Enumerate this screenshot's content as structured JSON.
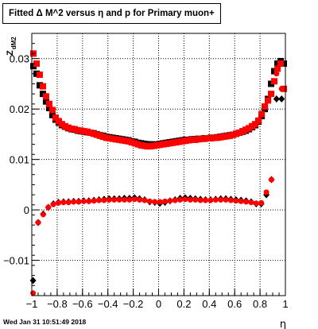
{
  "chart_data": {
    "type": "scatter",
    "title": "Fitted Δ M^2 versus η and p for Primary muon+",
    "xlabel": "η",
    "ylabel": "Z",
    "ylabel_sub": "dM2",
    "xlim": [
      -1,
      1
    ],
    "ylim": [
      -0.017,
      0.035
    ],
    "x_ticks": [
      "−1",
      "−0.8",
      "−0.6",
      "−0.4",
      "−0.2",
      "0",
      "0.2",
      "0.4",
      "0.6",
      "0.8",
      "1"
    ],
    "y_ticks": [
      "−0.01",
      "0",
      "0.01",
      "0.02",
      "0.03"
    ],
    "grid": true,
    "series": [
      {
        "marker": "square",
        "color": "#000000",
        "x": [
          -0.9875,
          -0.9625,
          -0.9375,
          -0.9125,
          -0.8875,
          -0.8625,
          -0.8375,
          -0.8125,
          -0.7875,
          -0.7625,
          -0.7375,
          -0.7125,
          -0.6875,
          -0.6625,
          -0.6375,
          -0.6125,
          -0.5875,
          -0.5625,
          -0.5375,
          -0.5125,
          -0.4875,
          -0.4625,
          -0.4375,
          -0.4125,
          -0.3875,
          -0.3625,
          -0.3375,
          -0.3125,
          -0.2875,
          -0.2625,
          -0.2375,
          -0.2125,
          -0.1875,
          -0.1625,
          -0.1375,
          -0.1125,
          -0.0875,
          -0.0625,
          -0.0375,
          -0.0125,
          0.0125,
          0.0375,
          0.0625,
          0.0875,
          0.1125,
          0.1375,
          0.1625,
          0.1875,
          0.2125,
          0.2375,
          0.2625,
          0.2875,
          0.3125,
          0.3375,
          0.3625,
          0.3875,
          0.4125,
          0.4375,
          0.4625,
          0.4875,
          0.5125,
          0.5375,
          0.5625,
          0.5875,
          0.6125,
          0.6375,
          0.6625,
          0.6875,
          0.7125,
          0.7375,
          0.7625,
          0.7875,
          0.8125,
          0.8375,
          0.8625,
          0.8875,
          0.9125,
          0.9375,
          0.9625,
          0.9875
        ],
        "y": [
          0.0285,
          0.027,
          0.0247,
          0.023,
          0.0215,
          0.0202,
          0.0188,
          0.0179,
          0.0173,
          0.0168,
          0.0165,
          0.0162,
          0.016,
          0.0159,
          0.0157,
          0.0156,
          0.0155,
          0.0154,
          0.0153,
          0.0152,
          0.015,
          0.0148,
          0.0147,
          0.0145,
          0.0144,
          0.0143,
          0.0142,
          0.0141,
          0.014,
          0.0139,
          0.0138,
          0.0136,
          0.0135,
          0.0133,
          0.0132,
          0.0131,
          0.013,
          0.013,
          0.0129,
          0.013,
          0.0131,
          0.0132,
          0.0133,
          0.0134,
          0.0135,
          0.0136,
          0.0137,
          0.0138,
          0.0139,
          0.0139,
          0.014,
          0.014,
          0.0141,
          0.0141,
          0.0142,
          0.0142,
          0.0143,
          0.0143,
          0.0144,
          0.0145,
          0.0146,
          0.0147,
          0.0148,
          0.0149,
          0.0151,
          0.0153,
          0.0155,
          0.0157,
          0.016,
          0.0164,
          0.0168,
          0.0175,
          0.0186,
          0.02,
          0.022,
          0.025,
          0.0275,
          0.029,
          0.0295,
          0.029
        ]
      },
      {
        "marker": "square",
        "color": "#ff0000",
        "x": [
          -0.9875,
          -0.9625,
          -0.9375,
          -0.9125,
          -0.8875,
          -0.8625,
          -0.8375,
          -0.8125,
          -0.7875,
          -0.7625,
          -0.7375,
          -0.7125,
          -0.6875,
          -0.6625,
          -0.6375,
          -0.6125,
          -0.5875,
          -0.5625,
          -0.5375,
          -0.5125,
          -0.4875,
          -0.4625,
          -0.4375,
          -0.4125,
          -0.3875,
          -0.3625,
          -0.3375,
          -0.3125,
          -0.2875,
          -0.2625,
          -0.2375,
          -0.2125,
          -0.1875,
          -0.1625,
          -0.1375,
          -0.1125,
          -0.0875,
          -0.0625,
          -0.0375,
          -0.0125,
          0.0125,
          0.0375,
          0.0625,
          0.0875,
          0.1125,
          0.1375,
          0.1625,
          0.1875,
          0.2125,
          0.2375,
          0.2625,
          0.2875,
          0.3125,
          0.3375,
          0.3625,
          0.3875,
          0.4125,
          0.4375,
          0.4625,
          0.4875,
          0.5125,
          0.5375,
          0.5625,
          0.5875,
          0.6125,
          0.6375,
          0.6625,
          0.6875,
          0.7125,
          0.7375,
          0.7625,
          0.7875,
          0.8125,
          0.8375,
          0.8625,
          0.8875,
          0.9125,
          0.9375,
          0.9625,
          0.9875
        ],
        "y": [
          0.031,
          0.029,
          0.0268,
          0.0245,
          0.0225,
          0.021,
          0.0198,
          0.0183,
          0.0176,
          0.017,
          0.0166,
          0.0163,
          0.0161,
          0.016,
          0.0158,
          0.0157,
          0.0156,
          0.0155,
          0.0153,
          0.0151,
          0.0149,
          0.0147,
          0.0145,
          0.0143,
          0.0142,
          0.0141,
          0.014,
          0.0139,
          0.0138,
          0.0137,
          0.0136,
          0.0134,
          0.0132,
          0.013,
          0.0128,
          0.0127,
          0.0126,
          0.0126,
          0.0127,
          0.0128,
          0.0129,
          0.013,
          0.0131,
          0.0132,
          0.0133,
          0.0134,
          0.0135,
          0.0136,
          0.0137,
          0.0138,
          0.0139,
          0.0139,
          0.014,
          0.0141,
          0.0141,
          0.0142,
          0.0142,
          0.0143,
          0.0143,
          0.0144,
          0.0145,
          0.0146,
          0.0147,
          0.0149,
          0.0151,
          0.0153,
          0.0156,
          0.0159,
          0.0162,
          0.0166,
          0.017,
          0.0177,
          0.019,
          0.0205,
          0.0217,
          0.023,
          0.0255,
          0.028,
          0.029,
          0.024
        ]
      },
      {
        "marker": "diamond",
        "color": "#000000",
        "x": [
          -0.99,
          -0.95,
          -0.91,
          -0.87,
          -0.83,
          -0.79,
          -0.75,
          -0.71,
          -0.67,
          -0.63,
          -0.59,
          -0.55,
          -0.51,
          -0.47,
          -0.43,
          -0.39,
          -0.35,
          -0.31,
          -0.27,
          -0.23,
          -0.19,
          -0.15,
          -0.11,
          -0.07,
          -0.03,
          0.01,
          0.05,
          0.09,
          0.13,
          0.17,
          0.21,
          0.25,
          0.29,
          0.33,
          0.37,
          0.41,
          0.45,
          0.49,
          0.53,
          0.57,
          0.61,
          0.65,
          0.69,
          0.73,
          0.77,
          0.81,
          0.85,
          0.89,
          0.93,
          0.97
        ],
        "y": [
          -0.014,
          -0.0025,
          -0.0008,
          0.0005,
          0.0012,
          0.0015,
          0.0016,
          0.0016,
          0.0017,
          0.0017,
          0.0018,
          0.0018,
          0.0019,
          0.002,
          0.0021,
          0.0022,
          0.0022,
          0.0022,
          0.0023,
          0.0023,
          0.0024,
          0.0022,
          0.002,
          0.0016,
          0.0015,
          0.0013,
          0.0015,
          0.0018,
          0.002,
          0.0023,
          0.0024,
          0.0023,
          0.0022,
          0.0021,
          0.002,
          0.002,
          0.0021,
          0.0022,
          0.0022,
          0.0021,
          0.002,
          0.0019,
          0.0018,
          0.0016,
          0.0012,
          0.0012,
          0.003,
          0.006,
          0.022,
          0.022
        ]
      },
      {
        "marker": "circle",
        "color": "#ff0000",
        "x": [
          -0.99,
          -0.95,
          -0.91,
          -0.87,
          -0.83,
          -0.79,
          -0.75,
          -0.71,
          -0.67,
          -0.63,
          -0.59,
          -0.55,
          -0.51,
          -0.47,
          -0.43,
          -0.39,
          -0.35,
          -0.31,
          -0.27,
          -0.23,
          -0.19,
          -0.15,
          -0.11,
          -0.07,
          -0.03,
          0.01,
          0.05,
          0.09,
          0.13,
          0.17,
          0.21,
          0.25,
          0.29,
          0.33,
          0.37,
          0.41,
          0.45,
          0.49,
          0.53,
          0.57,
          0.61,
          0.65,
          0.69,
          0.73,
          0.77,
          0.81,
          0.85,
          0.89,
          0.93,
          0.97
        ],
        "y": [
          -0.0165,
          -0.0025,
          -0.0009,
          0.0005,
          0.0011,
          0.0014,
          0.0015,
          0.0015,
          0.0016,
          0.0016,
          0.0017,
          0.0017,
          0.0018,
          0.0019,
          0.0019,
          0.002,
          0.002,
          0.002,
          0.002,
          0.002,
          0.0021,
          0.002,
          0.0019,
          0.0017,
          0.0016,
          0.0016,
          0.0017,
          0.0018,
          0.0019,
          0.002,
          0.0021,
          0.002,
          0.002,
          0.0019,
          0.0019,
          0.0019,
          0.002,
          0.002,
          0.002,
          0.0019,
          0.0018,
          0.0017,
          0.0016,
          0.0015,
          0.0013,
          0.0014,
          0.0035,
          0.006,
          0.027,
          0.024
        ]
      }
    ]
  },
  "footer": "Wed Jan 31 10:51:49 2018"
}
